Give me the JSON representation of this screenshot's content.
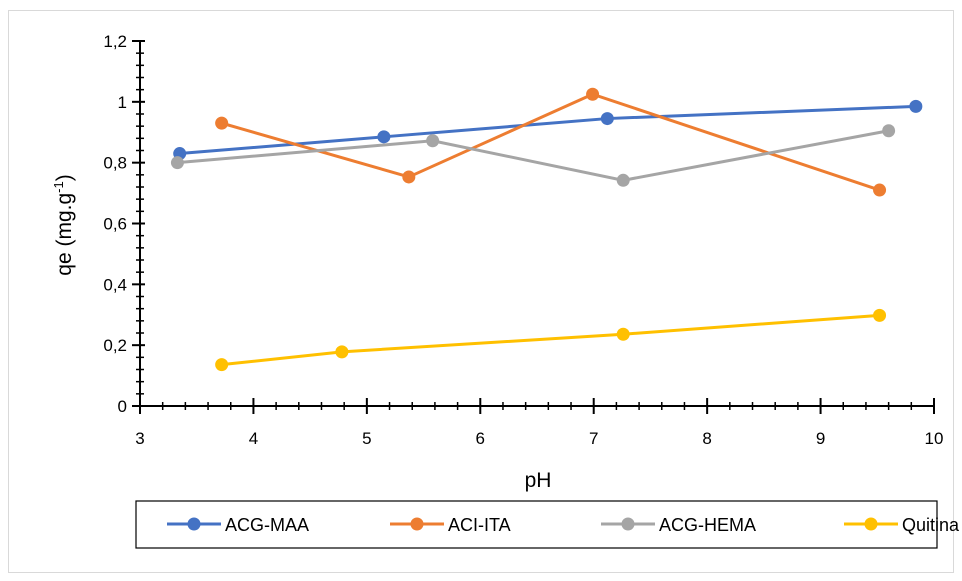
{
  "chart_data": {
    "type": "line",
    "title": "",
    "xlabel": "pH",
    "ylabel": "qe (mg.g",
    "ylabel_sup": "-1",
    "ylabel_tail": ")",
    "xlim": [
      3,
      10
    ],
    "ylim": [
      0,
      1.2
    ],
    "x_ticks": [
      3,
      4,
      5,
      6,
      7,
      8,
      9,
      10
    ],
    "x_tick_labels": [
      "3",
      "4",
      "5",
      "6",
      "7",
      "8",
      "9",
      "10"
    ],
    "y_ticks": [
      0,
      0.2,
      0.4,
      0.6,
      0.8,
      1.0,
      1.2
    ],
    "y_tick_labels": [
      "0",
      "0,2",
      "0,4",
      "0,6",
      "0,8",
      "1",
      "1,2"
    ],
    "grid": false,
    "legend_position": "bottom",
    "series": [
      {
        "name": "ACG-MAA",
        "color": "#4472C4",
        "x": [
          3.35,
          5.15,
          7.12,
          9.84
        ],
        "y": [
          0.83,
          0.885,
          0.945,
          0.985
        ]
      },
      {
        "name": "ACI-ITA",
        "color": "#ED7D31",
        "x": [
          3.72,
          5.37,
          6.99,
          9.52
        ],
        "y": [
          0.93,
          0.753,
          1.025,
          0.71
        ]
      },
      {
        "name": "ACG-HEMA",
        "color": "#A5A5A5",
        "x": [
          3.33,
          5.58,
          7.26,
          9.6
        ],
        "y": [
          0.8,
          0.872,
          0.742,
          0.905
        ]
      },
      {
        "name": "Quitina",
        "color": "#FFC000",
        "x": [
          3.72,
          4.78,
          7.26,
          9.52
        ],
        "y": [
          0.136,
          0.178,
          0.236,
          0.298
        ]
      }
    ]
  }
}
